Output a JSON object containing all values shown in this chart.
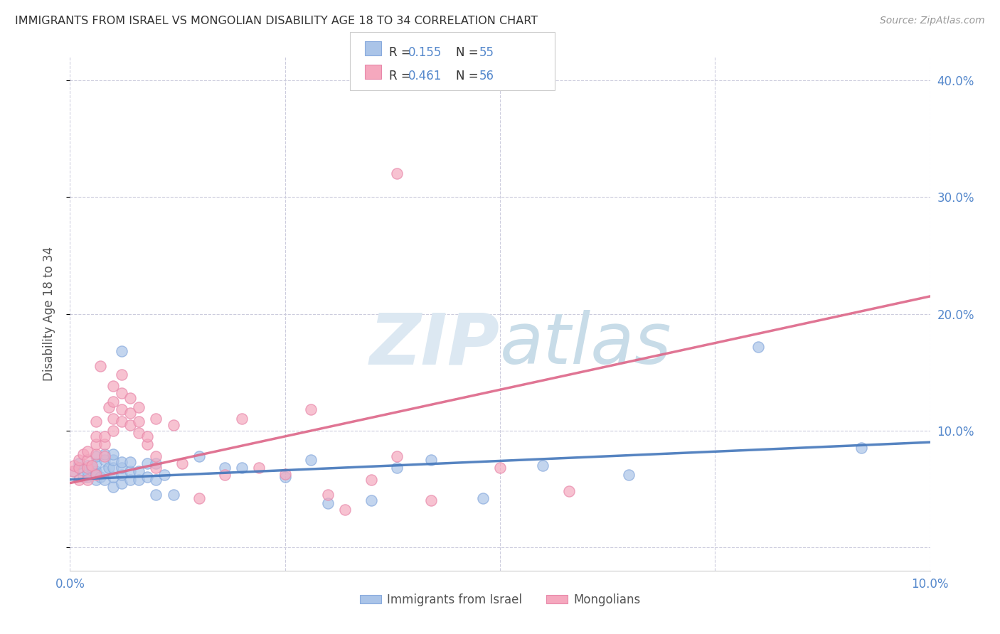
{
  "title": "IMMIGRANTS FROM ISRAEL VS MONGOLIAN DISABILITY AGE 18 TO 34 CORRELATION CHART",
  "source": "Source: ZipAtlas.com",
  "ylabel": "Disability Age 18 to 34",
  "blue_color": "#aac4e8",
  "pink_color": "#f5a8be",
  "blue_edge_color": "#88aadd",
  "pink_edge_color": "#e888aa",
  "blue_line_color": "#4477bb",
  "pink_line_color": "#dd6688",
  "axis_tick_color": "#5588cc",
  "title_color": "#333333",
  "source_color": "#999999",
  "background_color": "#ffffff",
  "grid_color": "#ccccdd",
  "watermark_color": "#dce8f2",
  "xlim": [
    0.0,
    0.1
  ],
  "ylim": [
    -0.02,
    0.42
  ],
  "blue_x": [
    0.0005,
    0.001,
    0.001,
    0.0015,
    0.002,
    0.002,
    0.002,
    0.0025,
    0.003,
    0.003,
    0.003,
    0.003,
    0.003,
    0.0035,
    0.004,
    0.004,
    0.004,
    0.004,
    0.0045,
    0.005,
    0.005,
    0.005,
    0.005,
    0.005,
    0.006,
    0.006,
    0.006,
    0.006,
    0.006,
    0.007,
    0.007,
    0.007,
    0.008,
    0.008,
    0.009,
    0.009,
    0.01,
    0.01,
    0.01,
    0.011,
    0.012,
    0.015,
    0.018,
    0.02,
    0.025,
    0.028,
    0.03,
    0.035,
    0.038,
    0.042,
    0.048,
    0.055,
    0.065,
    0.08,
    0.092
  ],
  "blue_y": [
    0.065,
    0.068,
    0.072,
    0.06,
    0.06,
    0.065,
    0.07,
    0.068,
    0.058,
    0.065,
    0.072,
    0.078,
    0.063,
    0.06,
    0.058,
    0.065,
    0.075,
    0.08,
    0.068,
    0.052,
    0.06,
    0.068,
    0.075,
    0.08,
    0.055,
    0.062,
    0.068,
    0.073,
    0.168,
    0.058,
    0.065,
    0.073,
    0.058,
    0.065,
    0.06,
    0.072,
    0.045,
    0.058,
    0.072,
    0.062,
    0.045,
    0.078,
    0.068,
    0.068,
    0.06,
    0.075,
    0.038,
    0.04,
    0.068,
    0.075,
    0.042,
    0.07,
    0.062,
    0.172,
    0.085
  ],
  "pink_x": [
    0.0003,
    0.0005,
    0.001,
    0.001,
    0.001,
    0.0015,
    0.002,
    0.002,
    0.002,
    0.002,
    0.0025,
    0.003,
    0.003,
    0.003,
    0.003,
    0.003,
    0.0035,
    0.004,
    0.004,
    0.004,
    0.0045,
    0.005,
    0.005,
    0.005,
    0.005,
    0.006,
    0.006,
    0.006,
    0.006,
    0.007,
    0.007,
    0.007,
    0.008,
    0.008,
    0.008,
    0.009,
    0.009,
    0.01,
    0.01,
    0.01,
    0.012,
    0.013,
    0.015,
    0.018,
    0.02,
    0.022,
    0.025,
    0.028,
    0.03,
    0.032,
    0.035,
    0.038,
    0.042,
    0.05,
    0.058,
    0.038
  ],
  "pink_y": [
    0.065,
    0.07,
    0.068,
    0.075,
    0.058,
    0.08,
    0.068,
    0.075,
    0.082,
    0.058,
    0.07,
    0.08,
    0.088,
    0.095,
    0.108,
    0.062,
    0.155,
    0.078,
    0.088,
    0.095,
    0.12,
    0.1,
    0.11,
    0.125,
    0.138,
    0.108,
    0.118,
    0.132,
    0.148,
    0.105,
    0.115,
    0.128,
    0.098,
    0.108,
    0.12,
    0.088,
    0.095,
    0.068,
    0.078,
    0.11,
    0.105,
    0.072,
    0.042,
    0.062,
    0.11,
    0.068,
    0.063,
    0.118,
    0.045,
    0.032,
    0.058,
    0.078,
    0.04,
    0.068,
    0.048,
    0.32
  ],
  "blue_trend_x": [
    0.0,
    0.1
  ],
  "blue_trend_y": [
    0.058,
    0.09
  ],
  "pink_trend_x": [
    0.0,
    0.1
  ],
  "pink_trend_y": [
    0.055,
    0.215
  ],
  "yticks": [
    0.0,
    0.1,
    0.2,
    0.3,
    0.4
  ],
  "ytick_labels_right": [
    "",
    "10.0%",
    "20.0%",
    "30.0%",
    "40.0%"
  ],
  "xticks": [
    0.0,
    0.025,
    0.05,
    0.075,
    0.1
  ],
  "xtick_labels": [
    "0.0%",
    "",
    "",
    "",
    "10.0%"
  ],
  "legend_r1": "0.155",
  "legend_n1": "55",
  "legend_r2": "0.461",
  "legend_n2": "56",
  "bottom_label1": "Immigrants from Israel",
  "bottom_label2": "Mongolians"
}
